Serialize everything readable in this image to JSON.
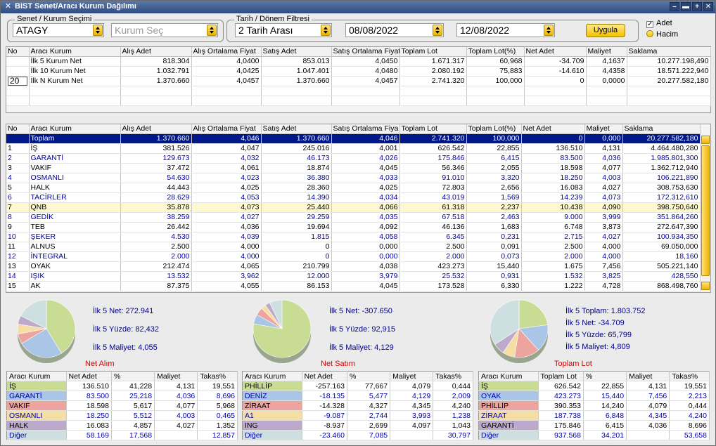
{
  "window": {
    "title": "BIST Senet/Aracı Kurum Dağılımı"
  },
  "filters": {
    "senet_group": "Senet / Kurum Seçimi",
    "symbol": "ATAGY",
    "kurum_placeholder": "Kurum Seç",
    "period_group": "Tarih / Dönem Filtresi",
    "period": "2 Tarih Arası",
    "date_from": "08/08/2022",
    "date_to": "12/08/2022",
    "apply": "Uygula",
    "opt_adet": "Adet",
    "opt_hacim": "Hacim",
    "adet_checked": "✓"
  },
  "top_table": {
    "headers": [
      "No",
      "Aracı Kurum",
      "Alış Adet",
      "Alış Ortalama Fiyat",
      "Satış Adet",
      "Satış Ortalama Fiyat",
      "Toplam Lot",
      "Toplam Lot(%)",
      "Net Adet",
      "Maliyet",
      "Saklama"
    ],
    "n_value": "20",
    "rows": [
      [
        "",
        "İlk 5 Kurum Net",
        "818.304",
        "4,0400",
        "853.013",
        "4,0450",
        "1.671.317",
        "60,968",
        "-34.709",
        "4,1637",
        "10.277.198,490"
      ],
      [
        "",
        "İlk 10 Kurum Net",
        "1.032.791",
        "4,0425",
        "1.047.401",
        "4,0480",
        "2.080.192",
        "75,883",
        "-14.610",
        "4,4358",
        "18.571.222,940"
      ],
      [
        "",
        "İlk N Kurum Net",
        "1.370.660",
        "4,0457",
        "1.370.660",
        "4,0457",
        "2.741.320",
        "100,000",
        "0",
        "0,0000",
        "20.277.582,180"
      ]
    ]
  },
  "main_table": {
    "headers": [
      "No",
      "Aracı Kurum",
      "Alış Adet",
      "Alış Ortalama Fiyat",
      "Satış Adet",
      "Satış Ortalama Fiya",
      "Toplam Lot",
      "Toplam Lot(%)",
      "Net Adet",
      "Maliyet",
      "Saklama"
    ],
    "rows": [
      [
        "",
        "Toplam",
        "1.370.660",
        "4,046",
        "1.370.660",
        "4,046",
        "2.741.320",
        "100,000",
        "0",
        "0,000",
        "20.277.582,180"
      ],
      [
        "1",
        "İŞ",
        "381.526",
        "4,047",
        "245.016",
        "4,001",
        "626.542",
        "22,855",
        "136.510",
        "4,131",
        "4.464.480,280"
      ],
      [
        "2",
        "GARANTİ",
        "129.673",
        "4,032",
        "46.173",
        "4,026",
        "175.846",
        "6,415",
        "83.500",
        "4,036",
        "1.985.801,300"
      ],
      [
        "3",
        "VAKIF",
        "37.472",
        "4,061",
        "18.874",
        "4,045",
        "56.346",
        "2,055",
        "18.598",
        "4,077",
        "1.362.712,940"
      ],
      [
        "4",
        "OSMANLI",
        "54.630",
        "4,023",
        "36.380",
        "4,033",
        "91.010",
        "3,320",
        "18.250",
        "4,003",
        "106.221,890"
      ],
      [
        "5",
        "HALK",
        "44.443",
        "4,025",
        "28.360",
        "4,025",
        "72.803",
        "2,656",
        "16.083",
        "4,027",
        "308.753,630"
      ],
      [
        "6",
        "TACİRLER",
        "28.629",
        "4,053",
        "14.390",
        "4,034",
        "43.019",
        "1,569",
        "14.239",
        "4,073",
        "172.312,610"
      ],
      [
        "7",
        "QNB",
        "35.878",
        "4,073",
        "25.440",
        "4,066",
        "61.318",
        "2,237",
        "10.438",
        "4,090",
        "398.750,640"
      ],
      [
        "8",
        "GEDİK",
        "38.259",
        "4,027",
        "29.259",
        "4,035",
        "67.518",
        "2,463",
        "9.000",
        "3,999",
        "351.864,260"
      ],
      [
        "9",
        "TEB",
        "26.442",
        "4,036",
        "19.694",
        "4,092",
        "46.136",
        "1,683",
        "6.748",
        "3,873",
        "272.647,390"
      ],
      [
        "10",
        "ŞEKER",
        "4.530",
        "4,039",
        "1.815",
        "4,058",
        "6.345",
        "0,231",
        "2.715",
        "4,027",
        "100.934,350"
      ],
      [
        "11",
        "ALNUS",
        "2.500",
        "4,000",
        "0",
        "0,000",
        "2.500",
        "0,091",
        "2.500",
        "4,000",
        "69.050,000"
      ],
      [
        "12",
        "İNTEGRAL",
        "2.000",
        "4,000",
        "0",
        "0,000",
        "2.000",
        "0,073",
        "2.000",
        "4,000",
        "18,160"
      ],
      [
        "13",
        "OYAK",
        "212.474",
        "4,065",
        "210.799",
        "4,038",
        "423.273",
        "15,440",
        "1.675",
        "7,456",
        "505.221,140"
      ],
      [
        "14",
        "IŞIK",
        "13.532",
        "3,962",
        "12.000",
        "3,979",
        "25.532",
        "0,931",
        "1.532",
        "3,825",
        "428,550"
      ],
      [
        "15",
        "AK",
        "87.375",
        "4,055",
        "86.153",
        "4,045",
        "173.528",
        "6,330",
        "1.222",
        "4,728",
        "868.498,760"
      ]
    ]
  },
  "panels": [
    {
      "title": "Net Alım",
      "stats": [
        "İlk 5 Net: 272.941",
        "İlk 5 Yüzde: 82,432",
        "İlk 5 Maliyet: 4,055"
      ],
      "headers": [
        "Aracı Kurum",
        "Net Adet",
        "%",
        "Maliyet",
        "Takas%"
      ],
      "rows": [
        {
          "cells": [
            "İŞ",
            "136.510",
            "41,228",
            "4,131",
            "19,551"
          ],
          "color": "#c8dc94"
        },
        {
          "cells": [
            "GARANTİ",
            "83.500",
            "25,218",
            "4,036",
            "8,696"
          ],
          "color": "#a9c6e6"
        },
        {
          "cells": [
            "VAKIF",
            "18.598",
            "5,617",
            "4,077",
            "5,968"
          ],
          "color": "#eda39e"
        },
        {
          "cells": [
            "OSMANLI",
            "18.250",
            "5,512",
            "4,003",
            "0,465"
          ],
          "color": "#f5dda3"
        },
        {
          "cells": [
            "HALK",
            "16.083",
            "4,857",
            "4,027",
            "1,352"
          ],
          "color": "#bca9cc"
        },
        {
          "cells": [
            "Diğer",
            "58.169",
            "17,568",
            "",
            "12,857"
          ],
          "color": "#cddfe0"
        }
      ],
      "chart_data": {
        "type": "pie",
        "labels": [
          "İŞ",
          "GARANTİ",
          "VAKIF",
          "OSMANLI",
          "HALK",
          "Diğer"
        ],
        "values": [
          41.228,
          25.218,
          5.617,
          5.512,
          4.857,
          17.568
        ]
      }
    },
    {
      "title": "Net Satım",
      "stats": [
        "İlk 5 Net: -307.650",
        "İlk 5 Yüzde: 92,915",
        "İlk 5 Maliyet: 4,129"
      ],
      "headers": [
        "Aracı Kurum",
        "Net Adet",
        "%",
        "Maliyet",
        "Takas%"
      ],
      "rows": [
        {
          "cells": [
            "PHİLLİP",
            "-257.163",
            "77,667",
            "4,079",
            "0,444"
          ],
          "color": "#c8dc94"
        },
        {
          "cells": [
            "DENİZ",
            "-18.135",
            "5,477",
            "4,129",
            "2,009"
          ],
          "color": "#a9c6e6"
        },
        {
          "cells": [
            "ZİRAAT",
            "-14.328",
            "4,327",
            "4,345",
            "4,240"
          ],
          "color": "#eda39e"
        },
        {
          "cells": [
            "A1",
            "-9.087",
            "2,744",
            "3,993",
            "1,238"
          ],
          "color": "#f5dda3"
        },
        {
          "cells": [
            "ING",
            "-8.937",
            "2,699",
            "4,097",
            "1,043"
          ],
          "color": "#bca9cc"
        },
        {
          "cells": [
            "Diğer",
            "-23.460",
            "7,085",
            "",
            "30,797"
          ],
          "color": "#cddfe0"
        }
      ],
      "chart_data": {
        "type": "pie",
        "labels": [
          "PHİLLİP",
          "DENİZ",
          "ZİRAAT",
          "A1",
          "ING",
          "Diğer"
        ],
        "values": [
          77.667,
          5.477,
          4.327,
          2.744,
          2.699,
          7.085
        ]
      }
    },
    {
      "title": "Toplam Lot",
      "stats": [
        "İlk 5 Toplam: 1.803.752",
        "İlk 5 Net: -34.709",
        "İlk 5 Yüzde: 65,799",
        "İlk 5 Maliyet: 4,809"
      ],
      "headers": [
        "Aracı Kurum",
        "Toplam Lot",
        "%",
        "Maliyet",
        "Takas%"
      ],
      "rows": [
        {
          "cells": [
            "İŞ",
            "626.542",
            "22,855",
            "4,131",
            "19,551"
          ],
          "color": "#c8dc94"
        },
        {
          "cells": [
            "OYAK",
            "423.273",
            "15,440",
            "7,456",
            "2,213"
          ],
          "color": "#a9c6e6"
        },
        {
          "cells": [
            "PHİLLİP",
            "390.353",
            "14,240",
            "4,079",
            "0,444"
          ],
          "color": "#eda39e"
        },
        {
          "cells": [
            "ZİRAAT",
            "187.738",
            "6,848",
            "4,345",
            "4,240"
          ],
          "color": "#f5dda3"
        },
        {
          "cells": [
            "GARANTİ",
            "175.846",
            "6,415",
            "4,036",
            "8,696"
          ],
          "color": "#bca9cc"
        },
        {
          "cells": [
            "Diğer",
            "937.568",
            "34,201",
            "",
            "53,658"
          ],
          "color": "#cddfe0"
        }
      ],
      "chart_data": {
        "type": "pie",
        "labels": [
          "İŞ",
          "OYAK",
          "PHİLLİP",
          "ZİRAAT",
          "GARANTİ",
          "Diğer"
        ],
        "values": [
          22.855,
          15.44,
          14.24,
          6.848,
          6.415,
          34.201
        ]
      }
    }
  ]
}
